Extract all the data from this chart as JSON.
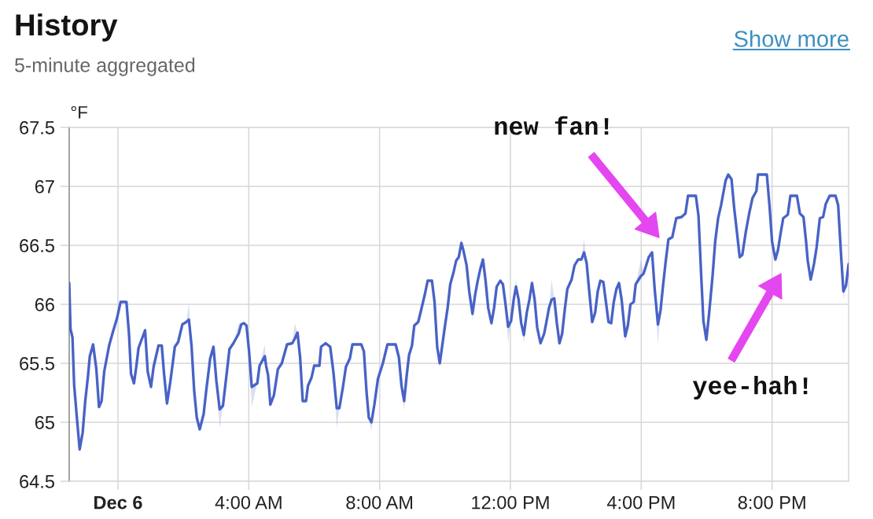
{
  "chart_data": {
    "type": "line",
    "title": "History",
    "subtitle": "5-minute aggregated",
    "ylabel": "°F",
    "x": [
      -1.49,
      -1.45,
      -1.39,
      -1.34,
      -1.25,
      -1.17,
      -1.08,
      -1.0,
      -0.92,
      -0.86,
      -0.76,
      -0.66,
      -0.58,
      -0.5,
      -0.42,
      -0.27,
      -0.15,
      -0.03,
      0.08,
      0.26,
      0.34,
      0.4,
      0.49,
      0.56,
      0.63,
      0.75,
      0.83,
      0.91,
      1.01,
      1.09,
      1.24,
      1.34,
      1.41,
      1.5,
      1.6,
      1.74,
      1.84,
      1.97,
      2.09,
      2.17,
      2.25,
      2.33,
      2.41,
      2.5,
      2.62,
      2.7,
      2.82,
      2.92,
      3.01,
      3.11,
      3.21,
      3.29,
      3.41,
      3.53,
      3.69,
      3.77,
      3.85,
      3.93,
      4.01,
      4.09,
      4.26,
      4.33,
      4.49,
      4.53,
      4.59,
      4.66,
      4.77,
      4.89,
      5.01,
      5.17,
      5.33,
      5.41,
      5.49,
      5.57,
      5.65,
      5.75,
      5.81,
      5.92,
      6.0,
      6.16,
      6.21,
      6.35,
      6.49,
      6.59,
      6.69,
      6.77,
      6.88,
      6.97,
      7.09,
      7.17,
      7.44,
      7.52,
      7.6,
      7.67,
      7.75,
      7.84,
      7.95,
      8.1,
      8.24,
      8.49,
      8.59,
      8.67,
      8.75,
      8.83,
      8.9,
      8.99,
      9.06,
      9.18,
      9.26,
      9.38,
      9.47,
      9.6,
      9.68,
      9.76,
      9.84,
      9.92,
      10.0,
      10.08,
      10.16,
      10.26,
      10.34,
      10.42,
      10.5,
      10.56,
      10.66,
      10.74,
      10.84,
      10.92,
      11.0,
      11.08,
      11.16,
      11.24,
      11.32,
      11.42,
      11.5,
      11.58,
      11.69,
      11.77,
      11.85,
      11.93,
      12.02,
      12.1,
      12.17,
      12.25,
      12.33,
      12.41,
      12.5,
      12.58,
      12.66,
      12.74,
      12.82,
      12.92,
      13.03,
      13.1,
      13.18,
      13.26,
      13.34,
      13.42,
      13.5,
      13.58,
      13.66,
      13.74,
      13.87,
      13.96,
      14.07,
      14.17,
      14.25,
      14.33,
      14.41,
      14.5,
      14.59,
      14.67,
      14.75,
      14.84,
      14.92,
      15.0,
      15.08,
      15.16,
      15.24,
      15.32,
      15.4,
      15.51,
      15.59,
      15.67,
      15.77,
      15.83,
      15.99,
      16.07,
      16.15,
      16.23,
      16.33,
      16.41,
      16.51,
      16.59,
      16.67,
      16.75,
      16.83,
      16.95,
      17.07,
      17.23,
      17.35,
      17.43,
      17.67,
      17.75,
      17.83,
      17.9,
      17.99,
      18.07,
      18.18,
      18.26,
      18.35,
      18.44,
      18.52,
      18.58,
      18.66,
      18.76,
      18.84,
      18.93,
      19.01,
      19.09,
      19.2,
      19.3,
      19.4,
      19.52,
      19.57,
      19.84,
      19.92,
      20.0,
      20.1,
      20.18,
      20.26,
      20.34,
      20.48,
      20.56,
      20.76,
      20.85,
      20.96,
      21.04,
      21.09,
      21.18,
      21.28,
      21.36,
      21.46,
      21.56,
      21.64,
      21.76,
      21.94,
      22.02,
      22.1,
      22.18,
      22.26,
      22.34
    ],
    "series": [
      {
        "color": "#4862c6",
        "values": [
          66.18,
          65.79,
          65.72,
          65.32,
          65.02,
          64.77,
          64.91,
          65.18,
          65.38,
          65.56,
          65.66,
          65.45,
          65.13,
          65.18,
          65.43,
          65.65,
          65.77,
          65.88,
          66.02,
          66.02,
          65.74,
          65.41,
          65.33,
          65.47,
          65.63,
          65.72,
          65.78,
          65.43,
          65.3,
          65.47,
          65.65,
          65.65,
          65.41,
          65.16,
          65.34,
          65.64,
          65.68,
          65.83,
          65.85,
          65.87,
          65.65,
          65.27,
          65.04,
          64.94,
          65.07,
          65.27,
          65.54,
          65.64,
          65.35,
          65.11,
          65.14,
          65.33,
          65.62,
          65.67,
          65.75,
          65.83,
          65.84,
          65.82,
          65.6,
          65.3,
          65.33,
          65.48,
          65.56,
          65.48,
          65.4,
          65.15,
          65.23,
          65.45,
          65.5,
          65.66,
          65.67,
          65.71,
          65.76,
          65.55,
          65.18,
          65.18,
          65.31,
          65.38,
          65.48,
          65.48,
          65.64,
          65.67,
          65.64,
          65.42,
          65.12,
          65.12,
          65.3,
          65.47,
          65.54,
          65.66,
          65.66,
          65.6,
          65.26,
          65.04,
          65.0,
          65.15,
          65.37,
          65.5,
          65.66,
          65.66,
          65.55,
          65.31,
          65.18,
          65.4,
          65.57,
          65.65,
          65.82,
          65.85,
          65.94,
          66.08,
          66.2,
          66.2,
          66.02,
          65.64,
          65.5,
          65.66,
          65.82,
          65.97,
          66.17,
          66.27,
          66.37,
          66.4,
          66.52,
          66.46,
          66.33,
          66.11,
          65.92,
          66.08,
          66.2,
          66.3,
          66.38,
          66.2,
          65.97,
          65.84,
          65.97,
          66.15,
          66.2,
          66.17,
          66.0,
          65.81,
          65.86,
          66.04,
          66.15,
          66.04,
          65.84,
          65.74,
          65.93,
          66.04,
          66.18,
          66.04,
          65.8,
          65.67,
          65.75,
          65.85,
          65.97,
          66.04,
          66.05,
          65.84,
          65.67,
          65.75,
          65.95,
          66.13,
          66.21,
          66.33,
          66.38,
          66.38,
          66.44,
          66.35,
          66.11,
          65.85,
          65.93,
          66.11,
          66.2,
          66.19,
          66.02,
          65.85,
          65.84,
          66.02,
          66.13,
          66.18,
          66.04,
          65.73,
          65.82,
          66.0,
          66.02,
          66.17,
          66.24,
          66.26,
          66.33,
          66.4,
          66.44,
          66.13,
          65.83,
          65.95,
          66.17,
          66.37,
          66.55,
          66.57,
          66.73,
          66.74,
          66.77,
          66.92,
          66.92,
          66.75,
          66.26,
          65.86,
          65.7,
          65.91,
          66.24,
          66.53,
          66.73,
          66.84,
          66.96,
          67.05,
          67.1,
          67.06,
          66.82,
          66.6,
          66.4,
          66.42,
          66.62,
          66.77,
          66.9,
          66.96,
          67.1,
          67.1,
          66.84,
          66.53,
          66.38,
          66.46,
          66.6,
          66.73,
          66.76,
          66.92,
          66.92,
          66.77,
          66.74,
          66.53,
          66.37,
          66.21,
          66.34,
          66.48,
          66.73,
          66.74,
          66.85,
          66.92,
          66.92,
          66.84,
          66.46,
          66.11,
          66.16,
          66.34
        ],
        "lower": [
          null,
          null,
          null,
          null,
          null,
          null,
          null,
          null,
          null,
          null,
          null,
          null,
          null,
          null,
          null,
          null,
          null,
          null,
          null,
          null,
          null,
          null,
          null,
          null,
          null,
          null,
          null,
          null,
          null,
          null,
          null,
          null,
          null,
          null,
          null,
          null,
          null,
          null,
          65.85,
          65.87,
          65.65,
          null,
          null,
          null,
          null,
          null,
          null,
          null,
          65.35,
          64.95,
          65.14,
          null,
          null,
          65.67,
          65.75,
          65.83,
          null,
          null,
          65.6,
          65.13,
          65.33,
          65.48,
          65.56,
          65.48,
          null,
          null,
          null,
          null,
          null,
          null,
          65.67,
          65.71,
          65.76,
          null,
          null,
          null,
          null,
          null,
          null,
          null,
          null,
          null,
          null,
          65.42,
          64.95,
          65.12,
          null,
          null,
          null,
          null,
          null,
          null,
          null,
          65.04,
          64.93,
          65.15,
          null,
          null,
          null,
          null,
          null,
          65.31,
          65.1,
          65.4,
          null,
          null,
          null,
          null,
          null,
          null,
          null,
          null,
          null,
          null,
          null,
          null,
          null,
          null,
          null,
          null,
          null,
          66.4,
          66.52,
          66.46,
          null,
          66.11,
          65.86,
          66.08,
          null,
          null,
          null,
          null,
          null,
          null,
          null,
          null,
          null,
          null,
          66.0,
          65.67,
          65.86,
          66.04,
          66.15,
          66.04,
          65.84,
          65.67,
          65.93,
          66.04,
          66.18,
          66.04,
          null,
          null,
          null,
          null,
          65.97,
          66.04,
          66.05,
          null,
          null,
          null,
          null,
          null,
          null,
          null,
          null,
          66.38,
          66.44,
          66.35,
          null,
          null,
          null,
          null,
          null,
          null,
          null,
          null,
          null,
          null,
          66.13,
          66.18,
          66.04,
          65.67,
          65.82,
          null,
          null,
          66.17,
          66.24,
          66.26,
          null,
          null,
          null,
          66.13,
          65.66,
          65.95,
          null,
          null,
          null,
          null,
          null,
          null,
          null,
          null,
          null,
          null,
          null,
          65.86,
          65.66,
          65.91,
          null,
          null,
          null,
          null,
          null,
          null,
          null,
          null,
          null,
          null,
          null,
          null,
          null,
          null,
          null,
          null,
          null,
          null,
          null,
          null,
          null,
          null,
          null,
          null,
          null,
          null,
          null,
          null,
          null,
          null,
          null,
          null,
          null,
          null,
          null,
          null,
          null,
          null,
          null,
          null,
          66.46,
          66.04,
          66.16,
          null
        ],
        "upper": [
          null,
          null,
          null,
          null,
          null,
          null,
          null,
          null,
          null,
          null,
          null,
          null,
          null,
          null,
          null,
          null,
          null,
          null,
          null,
          null,
          null,
          null,
          null,
          null,
          null,
          null,
          null,
          null,
          null,
          null,
          null,
          null,
          null,
          null,
          null,
          null,
          null,
          null,
          65.85,
          66.01,
          65.65,
          null,
          null,
          null,
          null,
          null,
          null,
          null,
          65.35,
          65.11,
          65.14,
          null,
          null,
          65.67,
          65.84,
          65.83,
          null,
          null,
          65.6,
          65.3,
          65.33,
          65.48,
          65.66,
          65.48,
          null,
          null,
          null,
          null,
          null,
          null,
          65.67,
          65.84,
          65.76,
          null,
          null,
          null,
          null,
          null,
          null,
          null,
          null,
          null,
          null,
          65.42,
          65.12,
          65.12,
          null,
          null,
          null,
          null,
          null,
          null,
          null,
          65.04,
          65.0,
          65.15,
          null,
          null,
          null,
          null,
          null,
          65.31,
          65.18,
          65.4,
          null,
          null,
          null,
          null,
          null,
          null,
          null,
          null,
          null,
          null,
          null,
          null,
          null,
          null,
          null,
          null,
          null,
          66.4,
          66.56,
          66.46,
          null,
          66.11,
          65.92,
          66.08,
          null,
          null,
          null,
          null,
          null,
          null,
          null,
          null,
          null,
          null,
          66.0,
          65.81,
          65.86,
          66.04,
          66.21,
          66.04,
          65.84,
          65.74,
          65.93,
          66.04,
          66.21,
          66.04,
          null,
          null,
          null,
          null,
          65.97,
          66.21,
          66.05,
          null,
          null,
          null,
          null,
          null,
          null,
          null,
          null,
          66.38,
          66.56,
          66.35,
          null,
          null,
          null,
          null,
          null,
          null,
          null,
          null,
          null,
          null,
          66.13,
          66.21,
          66.04,
          65.73,
          65.82,
          null,
          null,
          66.17,
          66.38,
          66.26,
          null,
          null,
          null,
          66.13,
          65.83,
          65.95,
          null,
          null,
          null,
          null,
          null,
          null,
          null,
          null,
          null,
          null,
          null,
          65.86,
          65.7,
          65.91,
          null,
          null,
          null,
          null,
          null,
          null,
          null,
          null,
          null,
          null,
          null,
          null,
          null,
          null,
          null,
          null,
          null,
          null,
          null,
          null,
          null,
          null,
          null,
          null,
          null,
          null,
          null,
          null,
          null,
          null,
          null,
          null,
          null,
          null,
          null,
          null,
          null,
          null,
          null,
          null,
          66.46,
          66.11,
          66.16,
          null
        ]
      }
    ],
    "xlim": [
      -1.49,
      22.34
    ],
    "xticks": [
      {
        "value": 0,
        "label": "Dec 6"
      },
      {
        "value": 4,
        "label": "4:00 AM"
      },
      {
        "value": 8,
        "label": "8:00 AM"
      },
      {
        "value": 12,
        "label": "12:00 PM"
      },
      {
        "value": 16,
        "label": "4:00 PM"
      },
      {
        "value": 20,
        "label": "8:00 PM"
      }
    ],
    "ylim": [
      64.5,
      67.5
    ],
    "yticks": [
      64.5,
      65,
      65.5,
      66,
      66.5,
      67,
      67.5
    ],
    "grid": true,
    "line_style": "solid",
    "annotations": [
      "new fan!",
      "yee-hah!",
      "Show more"
    ]
  }
}
